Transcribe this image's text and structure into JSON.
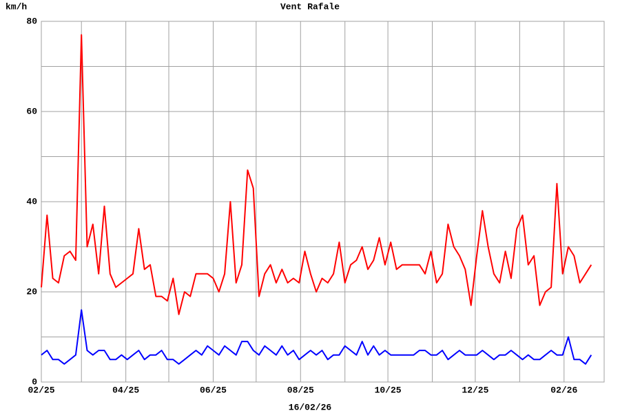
{
  "chart_data": {
    "type": "line",
    "ylabel": "km/h",
    "xlabel": "16/02/26",
    "xlim": [
      0,
      393
    ],
    "ylim": [
      0,
      80
    ],
    "xticks": [
      {
        "value": 0,
        "label": "02/25"
      },
      {
        "value": 59,
        "label": "04/25"
      },
      {
        "value": 120,
        "label": "06/25"
      },
      {
        "value": 181,
        "label": "08/25"
      },
      {
        "value": 242,
        "label": "10/25"
      },
      {
        "value": 303,
        "label": "12/25"
      },
      {
        "value": 365,
        "label": "02/26"
      }
    ],
    "xgrid": [
      28,
      89,
      150,
      212,
      273,
      334
    ],
    "yticks": [
      0,
      20,
      40,
      60,
      80
    ],
    "ygrid": [
      10,
      30,
      50,
      70
    ],
    "grid": true,
    "x": [
      0,
      4,
      8,
      12,
      16,
      20,
      24,
      28,
      32,
      36,
      40,
      44,
      48,
      52,
      56,
      60,
      64,
      68,
      72,
      76,
      80,
      84,
      88,
      92,
      96,
      100,
      104,
      108,
      112,
      116,
      120,
      124,
      128,
      132,
      136,
      140,
      144,
      148,
      152,
      156,
      160,
      164,
      168,
      172,
      176,
      180,
      184,
      188,
      192,
      196,
      200,
      204,
      208,
      212,
      216,
      220,
      224,
      228,
      232,
      236,
      240,
      244,
      248,
      252,
      256,
      260,
      264,
      268,
      272,
      276,
      280,
      284,
      288,
      292,
      296,
      300,
      304,
      308,
      312,
      316,
      320,
      324,
      328,
      332,
      336,
      340,
      344,
      348,
      352,
      356,
      360,
      364,
      368,
      372,
      376,
      380,
      384
    ],
    "series": [
      {
        "name": "Vent",
        "color": "#0000ff",
        "values": [
          6,
          7,
          5,
          5,
          4,
          5,
          6,
          16,
          7,
          6,
          7,
          7,
          5,
          5,
          6,
          5,
          6,
          7,
          5,
          6,
          6,
          7,
          5,
          5,
          4,
          5,
          6,
          7,
          6,
          8,
          7,
          6,
          8,
          7,
          6,
          9,
          9,
          7,
          6,
          8,
          7,
          6,
          8,
          6,
          7,
          5,
          6,
          7,
          6,
          7,
          5,
          6,
          6,
          8,
          7,
          6,
          9,
          6,
          8,
          6,
          7,
          6,
          6,
          6,
          6,
          6,
          7,
          7,
          6,
          6,
          7,
          5,
          6,
          7,
          6,
          6,
          6,
          7,
          6,
          5,
          6,
          6,
          7,
          6,
          5,
          6,
          5,
          5,
          6,
          7,
          6,
          6,
          10,
          5,
          5,
          4,
          6
        ]
      },
      {
        "name": "Rafale",
        "color": "#ff0000",
        "values": [
          21,
          37,
          23,
          22,
          28,
          29,
          27,
          77,
          30,
          35,
          24,
          39,
          24,
          21,
          22,
          23,
          24,
          34,
          25,
          26,
          19,
          19,
          18,
          23,
          15,
          20,
          19,
          24,
          24,
          24,
          23,
          20,
          24,
          40,
          22,
          26,
          47,
          43,
          19,
          24,
          26,
          22,
          25,
          22,
          23,
          22,
          29,
          24,
          20,
          23,
          22,
          24,
          31,
          22,
          26,
          27,
          30,
          25,
          27,
          32,
          26,
          31,
          25,
          26,
          26,
          26,
          26,
          24,
          29,
          22,
          24,
          35,
          30,
          28,
          25,
          17,
          28,
          38,
          30,
          24,
          22,
          29,
          23,
          34,
          37,
          26,
          28,
          17,
          20,
          21,
          44,
          24,
          30,
          28,
          22,
          24,
          26
        ]
      }
    ]
  }
}
